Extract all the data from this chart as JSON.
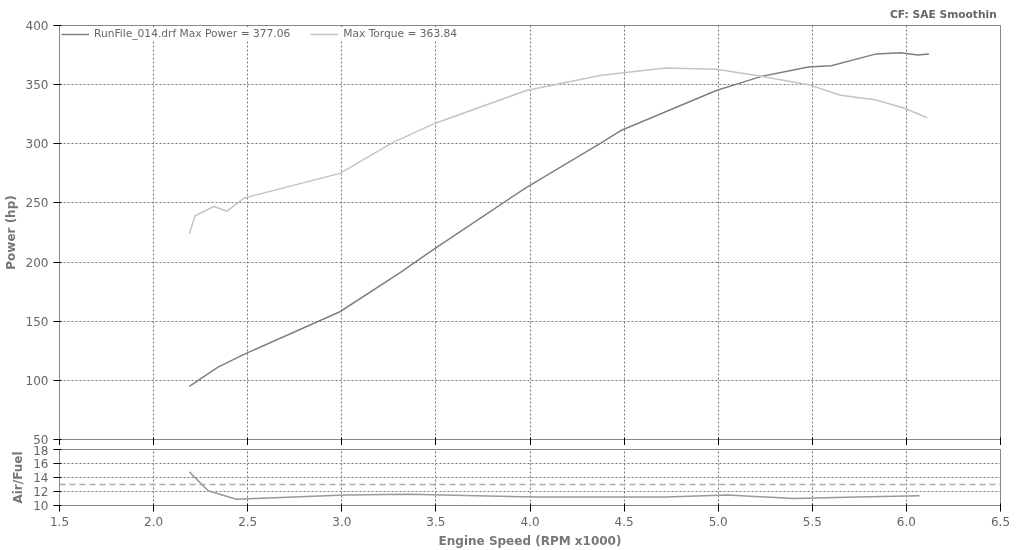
{
  "chart_data": [
    {
      "type": "line",
      "ylabel": "Power (hp)",
      "annotations": [
        "CF: SAE  Smoothin"
      ],
      "xlim": [
        1.5,
        6.5
      ],
      "xticks": [
        1.5,
        2.0,
        2.5,
        3.0,
        3.5,
        4.0,
        4.5,
        5.0,
        5.5,
        6.0,
        6.5
      ],
      "ylim": [
        50,
        400
      ],
      "yticks": [
        50,
        100,
        150,
        200,
        250,
        300,
        350,
        400
      ],
      "tick_labels": "y",
      "grid": true,
      "legend": "top left",
      "line_style": "solid",
      "marker": "none",
      "series": [
        {
          "name": "RunFile_014.drf Max Power = 377.06",
          "color": "#808080",
          "x": [
            2.19,
            2.34,
            2.48,
            2.99,
            3.31,
            3.49,
            3.98,
            4.38,
            4.48,
            4.99,
            5.23,
            5.48,
            5.6,
            5.84,
            5.97,
            6.06,
            6.12
          ],
          "values": [
            95,
            111,
            122,
            158,
            191,
            211,
            263,
            301,
            311,
            345,
            357,
            365,
            366,
            376,
            377,
            375,
            376
          ]
        },
        {
          "name": "Max Torque = 363.84",
          "color": "#c4c4c4",
          "x": [
            2.19,
            2.22,
            2.32,
            2.39,
            2.48,
            2.99,
            3.27,
            3.49,
            3.98,
            4.38,
            4.72,
            4.99,
            5.23,
            5.48,
            5.65,
            5.84,
            5.99,
            6.11
          ],
          "values": [
            224,
            239,
            247,
            243,
            254,
            275,
            301,
            317,
            345,
            358,
            364,
            363,
            357,
            350,
            341,
            337,
            330,
            322
          ]
        }
      ]
    },
    {
      "type": "line",
      "ylabel": "Air/Fuel",
      "xlabel": "Engine Speed (RPM x1000)",
      "xlim": [
        1.5,
        6.5
      ],
      "xticks": [
        {
          "value": 1.5,
          "label": "1.5"
        },
        {
          "value": 2.0,
          "label": "2.0"
        },
        {
          "value": 2.5,
          "label": "2.5"
        },
        {
          "value": 3.0,
          "label": "3.0"
        },
        {
          "value": 3.5,
          "label": "3.5"
        },
        {
          "value": 4.0,
          "label": "4.0"
        },
        {
          "value": 4.5,
          "label": "4.5"
        },
        {
          "value": 5.0,
          "label": "5.0"
        },
        {
          "value": 5.5,
          "label": "5.5"
        },
        {
          "value": 6.0,
          "label": "6.0"
        },
        {
          "value": 6.5,
          "label": "6.5"
        }
      ],
      "ylim": [
        10,
        18
      ],
      "yticks": [
        10,
        12,
        14,
        16,
        18
      ],
      "grid": true,
      "marker": "none",
      "line_style": "solid",
      "ref_lines": [
        {
          "axis": "y",
          "value": 13,
          "label": null,
          "color": "#aaaaaa",
          "line_style": "dashed"
        }
      ],
      "series": [
        {
          "color": "#999999",
          "x": [
            2.19,
            2.29,
            2.44,
            2.54,
            3.02,
            3.36,
            4.04,
            4.72,
            5.05,
            5.4,
            5.74,
            6.07
          ],
          "values": [
            14.8,
            12.1,
            10.9,
            11.0,
            11.5,
            11.6,
            11.2,
            11.2,
            11.5,
            11.0,
            11.2,
            11.4
          ]
        }
      ]
    }
  ]
}
